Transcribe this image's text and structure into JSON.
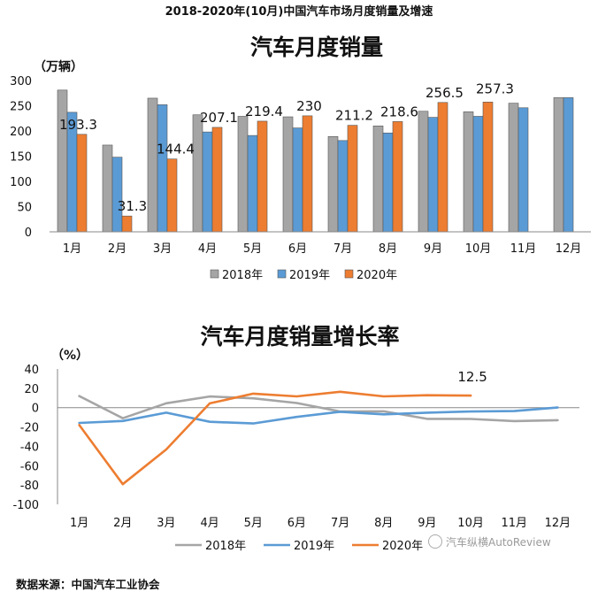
{
  "page_title": "2018-2020年(10月)中国汽车市场月度销量及增速",
  "source": "数据来源：中国汽车工业协会",
  "watermark": "汽车纵横AutoReview",
  "colors": {
    "y2018": "#A5A5A5",
    "y2019": "#5B9BD5",
    "y2020": "#ED7D31"
  },
  "chart_data": [
    {
      "type": "bar",
      "title": "汽车月度销量",
      "unit_label": "（万辆）",
      "categories": [
        "1月",
        "2月",
        "3月",
        "4月",
        "5月",
        "6月",
        "7月",
        "8月",
        "9月",
        "10月",
        "11月",
        "12月"
      ],
      "yticks": [
        "0",
        "50",
        "100",
        "150",
        "200",
        "250",
        "300"
      ],
      "ylim": [
        0,
        300
      ],
      "legend_position": "bottom",
      "grid": false,
      "series": [
        {
          "name": "2018年",
          "values": [
            281,
            172,
            265,
            232,
            229,
            228,
            189,
            210,
            239,
            238,
            255,
            266
          ]
        },
        {
          "name": "2019年",
          "values": [
            237,
            148,
            252,
            198,
            191,
            206,
            181,
            196,
            227,
            229,
            246,
            266
          ]
        },
        {
          "name": "2020年",
          "values": [
            193.3,
            31.3,
            144.4,
            207.1,
            219.4,
            230,
            211.2,
            218.6,
            256.5,
            257.3,
            null,
            null
          ]
        }
      ],
      "data_labels": [
        "193.3",
        "31.3",
        "144.4",
        "207.1",
        "219.4",
        "230",
        "211.2",
        "218.6",
        "256.5",
        "257.3"
      ]
    },
    {
      "type": "line",
      "title": "汽车月度销量增长率",
      "unit_label": "（%）",
      "categories": [
        "1月",
        "2月",
        "3月",
        "4月",
        "5月",
        "6月",
        "7月",
        "8月",
        "9月",
        "10月",
        "11月",
        "12月"
      ],
      "yticks": [
        "40",
        "20",
        "0",
        "-20",
        "-40",
        "-60",
        "-80",
        "-100"
      ],
      "ylim": [
        -100,
        40
      ],
      "legend_position": "bottom",
      "grid": false,
      "series": [
        {
          "name": "2018年",
          "values": [
            12,
            -11,
            4.5,
            11.5,
            9.6,
            4.8,
            -4,
            -3.8,
            -11.6,
            -11.7,
            -13.9,
            -13
          ]
        },
        {
          "name": "2019年",
          "values": [
            -15.8,
            -13.8,
            -5.2,
            -14.6,
            -16.4,
            -9.6,
            -4.3,
            -6.9,
            -5.2,
            -4,
            -3.6,
            0.1
          ]
        },
        {
          "name": "2020年",
          "values": [
            -18,
            -79.1,
            -43.3,
            4.4,
            14.5,
            11.6,
            16.4,
            11.6,
            12.8,
            12.5,
            null,
            null
          ]
        }
      ],
      "data_labels": [
        "12.5"
      ]
    }
  ]
}
